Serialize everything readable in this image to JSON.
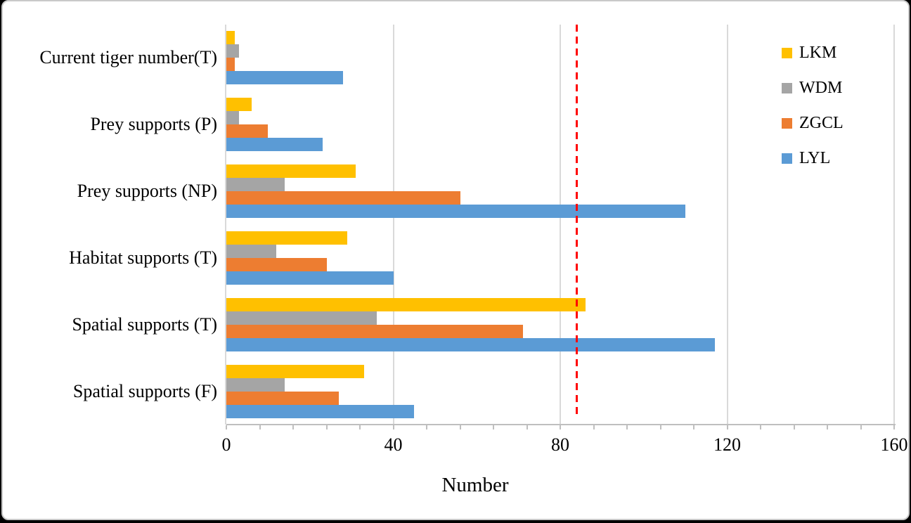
{
  "chart_data": {
    "type": "bar",
    "orientation": "horizontal",
    "xlabel": "Number",
    "categories": [
      "Current tiger number(T)",
      "Prey supports (P)",
      "Prey supports (NP)",
      "Habitat supports (T)",
      "Spatial supports (T)",
      "Spatial supports (F)"
    ],
    "series": [
      {
        "name": "LKM",
        "color": "#FFC000",
        "values": [
          2,
          6,
          31,
          29,
          86,
          33
        ]
      },
      {
        "name": "WDM",
        "color": "#A5A5A5",
        "values": [
          3,
          3,
          14,
          12,
          36,
          14
        ]
      },
      {
        "name": "ZGCL",
        "color": "#ED7D31",
        "values": [
          2,
          10,
          56,
          24,
          71,
          27
        ]
      },
      {
        "name": "LYL",
        "color": "#5B9BD5",
        "values": [
          28,
          23,
          110,
          40,
          117,
          45
        ]
      }
    ],
    "xlim": [
      0,
      160
    ],
    "x_major_ticks": [
      0,
      40,
      80,
      120,
      160
    ],
    "x_minor_tick_step": 8,
    "grid": "vertical-major-gridlines",
    "legend_position": "top-right",
    "legend_order": [
      "LKM",
      "WDM",
      "ZGCL",
      "LYL"
    ],
    "reference_line": {
      "value": 84,
      "color": "#FF0000",
      "style": "dashed"
    }
  },
  "frame": {
    "background": "#FFFFFF",
    "border_color": "#C9C9C9",
    "gridline_color": "#D9D9D9",
    "axis_line_color": "#BFBFBF",
    "text_color": "#000000"
  }
}
